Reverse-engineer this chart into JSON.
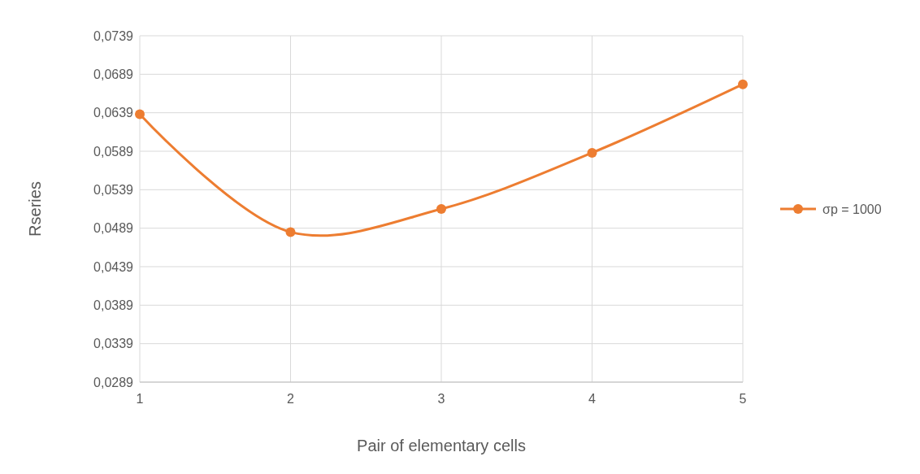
{
  "chart_data": {
    "type": "line",
    "xlabel": "Pair of elementary cells",
    "ylabel": "Rseries",
    "x": [
      1,
      2,
      3,
      4,
      5
    ],
    "series": [
      {
        "name": "σp = 1000",
        "color": "#ed7d31",
        "values": [
          0.0637,
          0.0484,
          0.0514,
          0.0587,
          0.0676
        ]
      }
    ],
    "xlim": [
      1,
      5
    ],
    "xticks": [
      1,
      2,
      3,
      4,
      5
    ],
    "ylim": [
      0.0289,
      0.0739
    ],
    "yticks": [
      {
        "value": 0.0289,
        "label": "0,0289"
      },
      {
        "value": 0.0339,
        "label": "0,0339"
      },
      {
        "value": 0.0389,
        "label": "0,0389"
      },
      {
        "value": 0.0439,
        "label": "0,0439"
      },
      {
        "value": 0.0489,
        "label": "0,0489"
      },
      {
        "value": 0.0539,
        "label": "0,0539"
      },
      {
        "value": 0.0589,
        "label": "0,0589"
      },
      {
        "value": 0.0639,
        "label": "0,0639"
      },
      {
        "value": 0.0689,
        "label": "0,0689"
      },
      {
        "value": 0.0739,
        "label": "0,0739"
      }
    ],
    "grid": true,
    "legend": "right",
    "marker": "circle",
    "line_style": "solid"
  }
}
